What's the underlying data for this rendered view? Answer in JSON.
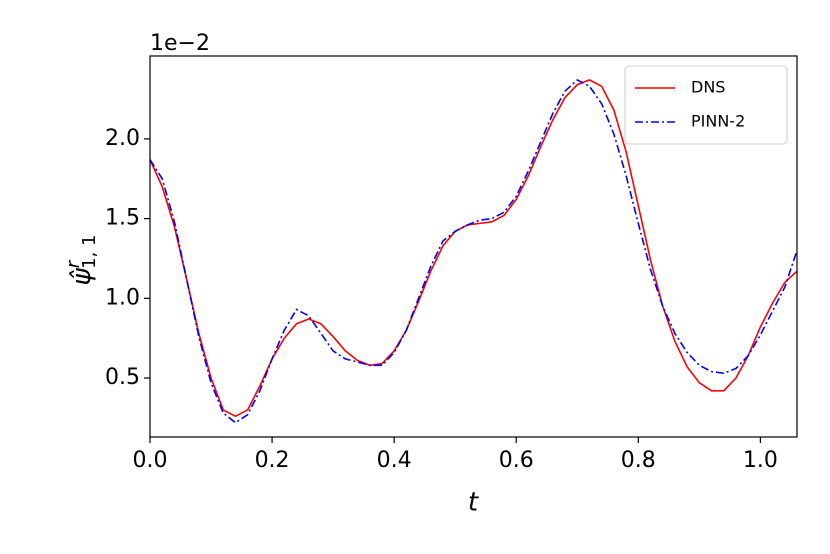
{
  "chart_data": {
    "type": "line",
    "offset_label": "1e−2",
    "xlabel": "t",
    "ylabel": {
      "symbol": "ψ̂",
      "superscript": "r",
      "subscript": "1, 1"
    },
    "x": [
      0,
      0.02,
      0.04,
      0.06,
      0.08,
      0.1,
      0.12,
      0.14,
      0.16,
      0.18,
      0.2,
      0.22,
      0.24,
      0.26,
      0.28,
      0.3,
      0.32,
      0.34,
      0.36,
      0.38,
      0.4,
      0.42,
      0.44,
      0.46,
      0.48,
      0.5,
      0.52,
      0.54,
      0.56,
      0.58,
      0.6,
      0.62,
      0.64,
      0.66,
      0.68,
      0.7,
      0.72,
      0.74,
      0.76,
      0.78,
      0.8,
      0.82,
      0.84,
      0.86,
      0.88,
      0.9,
      0.92,
      0.94,
      0.96,
      0.98,
      1.0,
      1.02,
      1.04,
      1.06
    ],
    "series": [
      {
        "name": "DNS",
        "color": "#ff0000",
        "linestyle": "solid",
        "values": [
          1.87,
          1.7,
          1.45,
          1.12,
          0.78,
          0.5,
          0.3,
          0.26,
          0.3,
          0.45,
          0.62,
          0.75,
          0.84,
          0.87,
          0.84,
          0.76,
          0.67,
          0.61,
          0.58,
          0.59,
          0.67,
          0.8,
          0.98,
          1.17,
          1.33,
          1.42,
          1.46,
          1.47,
          1.48,
          1.52,
          1.62,
          1.77,
          1.95,
          2.12,
          2.26,
          2.34,
          2.37,
          2.33,
          2.18,
          1.92,
          1.58,
          1.24,
          0.95,
          0.73,
          0.57,
          0.47,
          0.42,
          0.42,
          0.5,
          0.64,
          0.82,
          0.97,
          1.1,
          1.17
        ]
      },
      {
        "name": "PINN-2",
        "color": "#0000ff",
        "linestyle": "dashdot",
        "values": [
          1.87,
          1.75,
          1.48,
          1.12,
          0.76,
          0.47,
          0.28,
          0.22,
          0.27,
          0.42,
          0.62,
          0.8,
          0.93,
          0.89,
          0.78,
          0.67,
          0.62,
          0.6,
          0.58,
          0.58,
          0.66,
          0.8,
          1.0,
          1.2,
          1.36,
          1.42,
          1.46,
          1.49,
          1.5,
          1.54,
          1.64,
          1.8,
          1.98,
          2.16,
          2.3,
          2.37,
          2.33,
          2.22,
          2.03,
          1.77,
          1.47,
          1.18,
          0.95,
          0.78,
          0.66,
          0.58,
          0.54,
          0.53,
          0.56,
          0.64,
          0.77,
          0.92,
          1.07,
          1.3
        ]
      }
    ],
    "xlim": [
      0,
      1.06
    ],
    "ylim": [
      0.13,
      2.52
    ],
    "xticks": [
      {
        "value": 0,
        "label": "0.0"
      },
      0.2,
      0.4,
      0.6,
      0.8,
      {
        "value": 1,
        "label": "1.0"
      }
    ],
    "yticks": [
      0.5,
      {
        "value": 1,
        "label": "1.0"
      },
      1.5,
      {
        "value": 2,
        "label": "2.0"
      }
    ],
    "legend": "upper right"
  }
}
